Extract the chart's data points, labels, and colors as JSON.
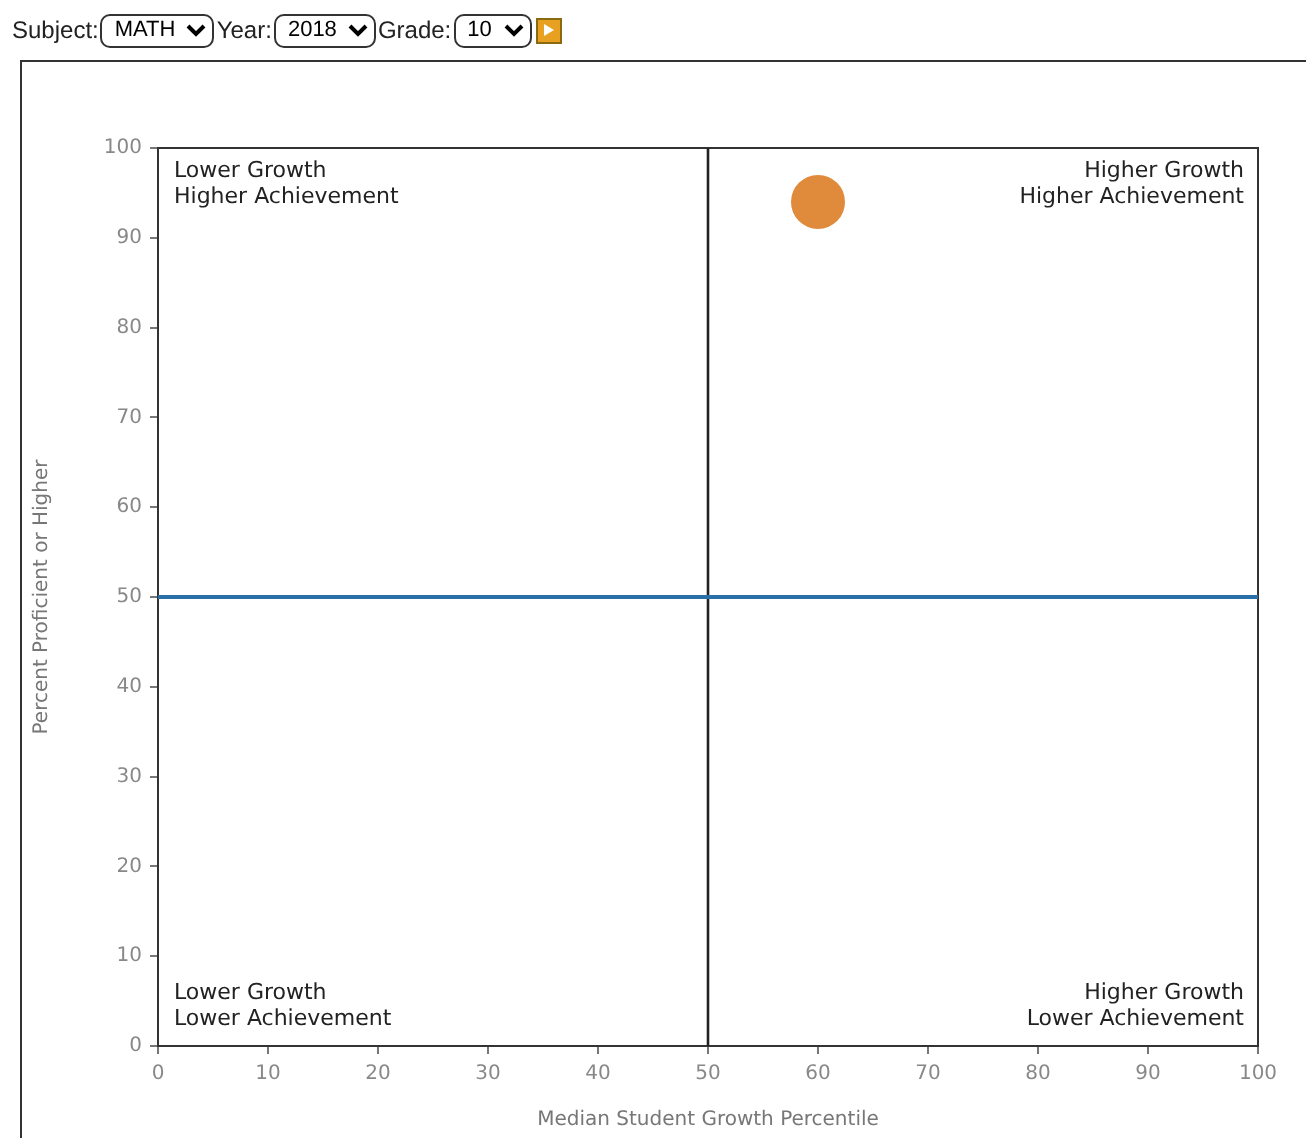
{
  "chart_data": {
    "type": "scatter",
    "xlabel": "Median Student Growth Percentile",
    "ylabel": "Percent Proficient or Higher",
    "x": [
      60
    ],
    "series": [
      {
        "color": "#e08a3c",
        "values": [
          94
        ]
      }
    ],
    "xlim": [
      0,
      100
    ],
    "xticks": [
      0,
      10,
      20,
      30,
      40,
      50,
      60,
      70,
      80,
      90,
      100
    ],
    "ylim": [
      0,
      100
    ],
    "yticks": [
      0,
      10,
      20,
      30,
      40,
      50,
      60,
      70,
      80,
      90,
      100
    ],
    "marker": "circle",
    "grid": false,
    "legend": false,
    "ref_lines": [
      {
        "axis": "x",
        "value": 50,
        "color": "#222222"
      },
      {
        "axis": "y",
        "value": 50,
        "color": "#2a6fa8"
      }
    ],
    "annotations": [
      "Subject:",
      "MATH",
      "Year:",
      "2018",
      "Grade:",
      "10",
      "Lower Growth\nHigher Achievement",
      "Higher Growth\nHigher Achievement",
      "Lower Growth\nLower Achievement",
      "Higher Growth\nLower Achievement"
    ]
  }
}
